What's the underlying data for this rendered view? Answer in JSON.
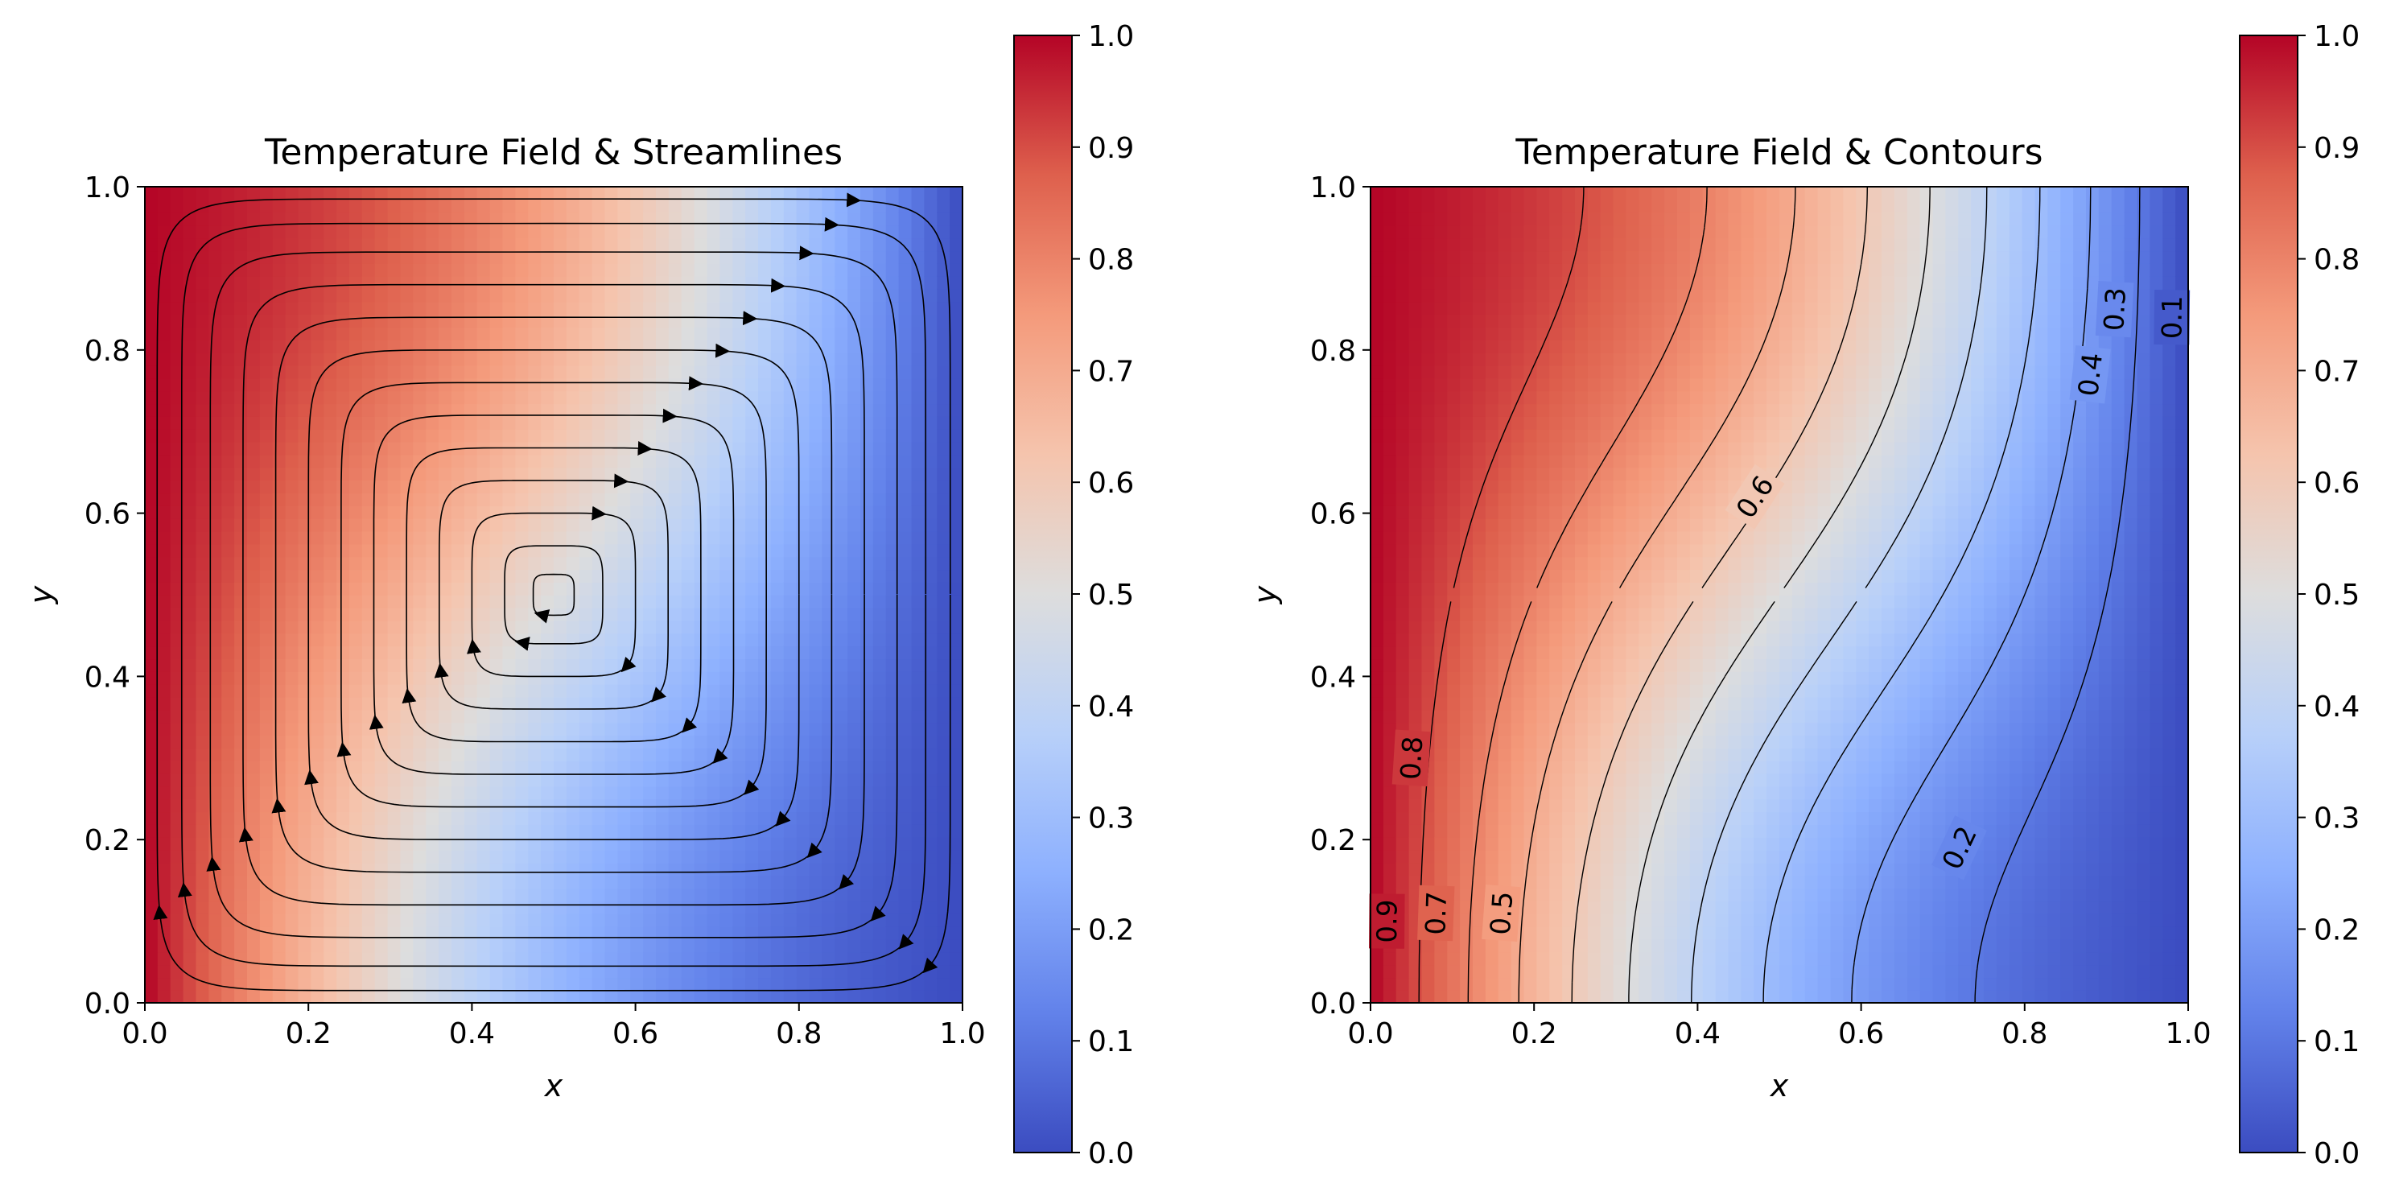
{
  "chart_data": [
    {
      "type": "heatmap",
      "subtype": "temperature-field-with-streamlines",
      "title": "Temperature Field & Streamlines",
      "xlabel": "x",
      "ylabel": "y",
      "xlim": [
        0,
        1
      ],
      "ylim": [
        0,
        1
      ],
      "xticks": [
        "0.0",
        "0.2",
        "0.4",
        "0.6",
        "0.8",
        "1.0"
      ],
      "yticks": [
        "0.0",
        "0.2",
        "0.4",
        "0.6",
        "0.8",
        "1.0"
      ],
      "colormap": "coolwarm",
      "colorbar": {
        "range": [
          0,
          1
        ],
        "ticks": [
          "0.0",
          "0.1",
          "0.2",
          "0.3",
          "0.4",
          "0.5",
          "0.6",
          "0.7",
          "0.8",
          "0.9",
          "1.0"
        ],
        "position": "right"
      },
      "field": "T(x,y) ranges from 1.0 at the left wall to 0.0 at the right wall, with the warm region pushed across the top and the cold region across the bottom",
      "streamlines": {
        "color": "#000000",
        "pattern": "single clockwise circulation cell",
        "center": [
          0.5,
          0.5
        ]
      }
    },
    {
      "type": "heatmap",
      "subtype": "temperature-field-with-contours",
      "title": "Temperature Field & Contours",
      "xlabel": "x",
      "ylabel": "y",
      "xlim": [
        0,
        1
      ],
      "ylim": [
        0,
        1
      ],
      "xticks": [
        "0.0",
        "0.2",
        "0.4",
        "0.6",
        "0.8",
        "1.0"
      ],
      "yticks": [
        "0.0",
        "0.2",
        "0.4",
        "0.6",
        "0.8",
        "1.0"
      ],
      "colormap": "coolwarm",
      "colorbar": {
        "range": [
          0,
          1
        ],
        "ticks": [
          "0.0",
          "0.1",
          "0.2",
          "0.3",
          "0.4",
          "0.5",
          "0.6",
          "0.7",
          "0.8",
          "0.9",
          "1.0"
        ],
        "position": "right"
      },
      "contour_levels": [
        0.1,
        0.2,
        0.3,
        0.4,
        0.5,
        0.6,
        0.7,
        0.8,
        0.9
      ],
      "contour_labels": [
        {
          "text": "0.9",
          "x": 0.02,
          "y": 0.1
        },
        {
          "text": "0.8",
          "x": 0.05,
          "y": 0.3
        },
        {
          "text": "0.7",
          "x": 0.08,
          "y": 0.11
        },
        {
          "text": "0.5",
          "x": 0.16,
          "y": 0.11
        },
        {
          "text": "0.6",
          "x": 0.47,
          "y": 0.62
        },
        {
          "text": "0.4",
          "x": 0.88,
          "y": 0.77
        },
        {
          "text": "0.3",
          "x": 0.91,
          "y": 0.85
        },
        {
          "text": "0.2",
          "x": 0.72,
          "y": 0.19
        },
        {
          "text": "0.1",
          "x": 0.98,
          "y": 0.84
        }
      ]
    }
  ]
}
